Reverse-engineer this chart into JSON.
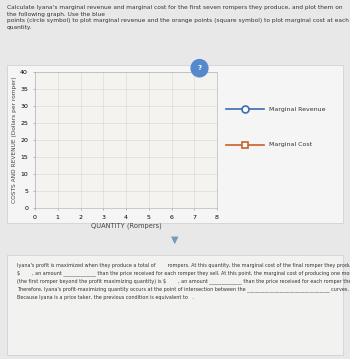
{
  "instruction_text": "Calculate Iyana's marginal revenue and marginal cost for the first seven rompers they produce, and plot them on the following graph. Use the blue\npoints (circle symbol) to plot marginal revenue and the orange points (square symbol) to plot marginal cost at each quantity.",
  "chart_title": "COSTS AND REVENUE (Dollars per romper)",
  "ylabel": "COSTS AND REVENUE (Dollars per romper)",
  "xlabel": "QUANTITY (Rompers)",
  "xlim": [
    0,
    8
  ],
  "ylim": [
    0,
    40
  ],
  "xticks": [
    0,
    1,
    2,
    3,
    4,
    5,
    6,
    7,
    8
  ],
  "yticks": [
    0,
    5,
    10,
    15,
    20,
    25,
    30,
    35,
    40
  ],
  "legend_mr_label": "Marginal Revenue",
  "legend_mc_label": "Marginal Cost",
  "mr_color": "#3a6db5",
  "mc_color": "#c8622a",
  "page_bg": "#e8e8e8",
  "card_bg": "#f5f5f5",
  "plot_bg": "#f5f3f0",
  "grid_color": "#d8d5d0",
  "bottom_card_bg": "#f2f2f0",
  "bottom_text": "Iyana's profit is maximized when they produce a total of        rompers. At this quantity, the marginal cost of the final romper they produce is\n$        , an amount _____________ than the price received for each romper they sell. At this point, the marginal cost of producing one more romper\n(the first romper beyond the profit maximizing quantity) is $        , an amount _____________ than the price received for each romper they sell.\nTherefore, Iyana's profit-maximizing quantity occurs at the point of intersection between the _________________________________ curves.\nBecause Iyana is a price taker, the previous condition is equivalent to   ."
}
